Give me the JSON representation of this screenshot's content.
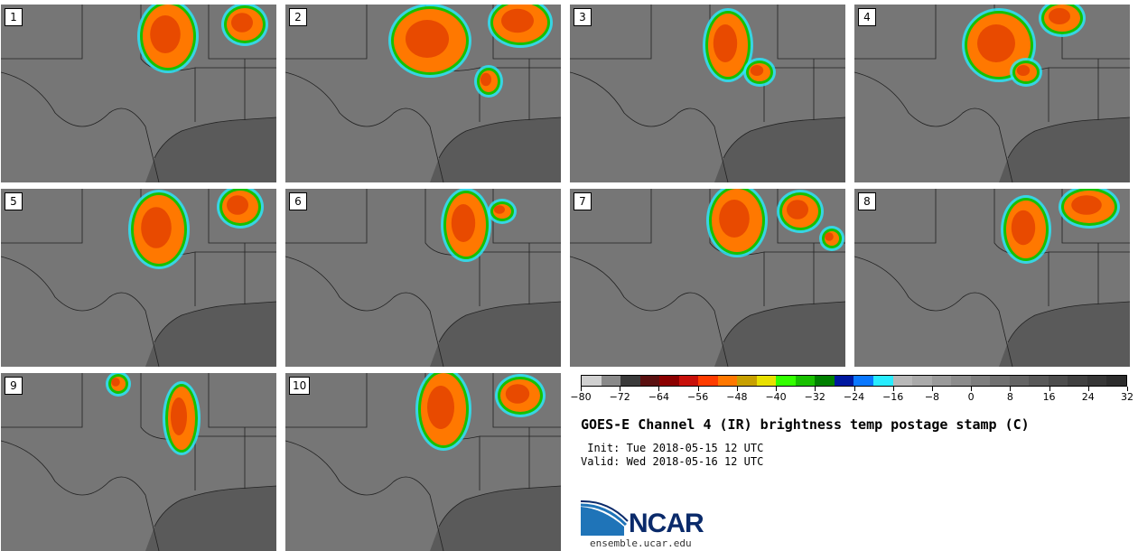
{
  "panels": [
    {
      "label": "1"
    },
    {
      "label": "2"
    },
    {
      "label": "3"
    },
    {
      "label": "4"
    },
    {
      "label": "5"
    },
    {
      "label": "6"
    },
    {
      "label": "7"
    },
    {
      "label": "8"
    },
    {
      "label": "9"
    },
    {
      "label": "10"
    }
  ],
  "colorbar": {
    "colors": [
      "#d0d0d0",
      "#8a8a8a",
      "#3a3a3a",
      "#5a1010",
      "#8b0000",
      "#c8100a",
      "#ff3c00",
      "#ff7800",
      "#c8a000",
      "#e8e000",
      "#32ff00",
      "#18c000",
      "#008000",
      "#0018a0",
      "#0a78ff",
      "#28ecff",
      "#b8b8b8",
      "#aaaaaa",
      "#9a9a9a",
      "#8c8c8c",
      "#7e7e7e",
      "#707070",
      "#646464",
      "#585858",
      "#4c4c4c",
      "#404040",
      "#363636",
      "#2c2c2c"
    ],
    "tick_labels": [
      "−80",
      "−72",
      "−64",
      "−56",
      "−48",
      "−40",
      "−32",
      "−24",
      "−16",
      "−8",
      "0",
      "8",
      "16",
      "24",
      "32"
    ]
  },
  "title": "GOES-E Channel 4 (IR) brightness temp postage stamp (C)",
  "init_line": " Init: Tue 2018-05-15 12 UTC",
  "valid_line": "Valid: Wed 2018-05-16 12 UTC",
  "logo_text": "NCAR",
  "site": "ensemble.ucar.edu"
}
